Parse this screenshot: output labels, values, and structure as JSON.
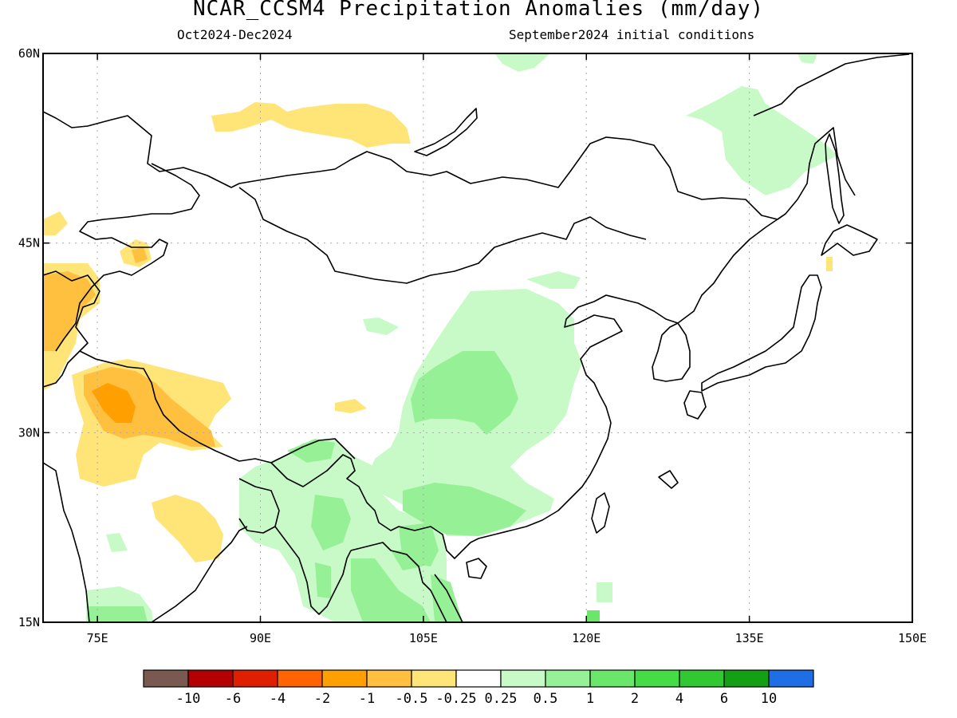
{
  "title": "NCAR_CCSM4 Precipitation Anomalies (mm/day)",
  "subtitle_left": "Oct2024-Dec2024",
  "subtitle_right": "September2024 initial conditions",
  "map": {
    "lon_min": 70,
    "lon_max": 150,
    "lat_min": 15,
    "lat_max": 60,
    "lat_ticks": [
      {
        "value": 60,
        "label": "60N"
      },
      {
        "value": 45,
        "label": "45N"
      },
      {
        "value": 30,
        "label": "30N"
      },
      {
        "value": 15,
        "label": "15N"
      }
    ],
    "lon_ticks": [
      {
        "value": 75,
        "label": "75E"
      },
      {
        "value": 90,
        "label": "90E"
      },
      {
        "value": 105,
        "label": "105E"
      },
      {
        "value": 120,
        "label": "120E"
      },
      {
        "value": 135,
        "label": "135E"
      },
      {
        "value": 150,
        "label": "150E"
      }
    ],
    "grid": true,
    "projection": "lat-lon"
  },
  "colorbar": {
    "colors": [
      "#7a5a50",
      "#b40000",
      "#e01e00",
      "#ff6400",
      "#ffa000",
      "#ffc040",
      "#ffe478",
      "#ffffff",
      "#c8fac8",
      "#96f096",
      "#6ae66a",
      "#46dc46",
      "#32c832",
      "#14a014",
      "#1e6ee6"
    ],
    "labels": [
      "-10",
      "-6",
      "-4",
      "-2",
      "-1",
      "-0.5",
      "-0.25",
      "0.25",
      "0.5",
      "1",
      "2",
      "4",
      "6",
      "10"
    ]
  },
  "anomaly_regions": [
    {
      "category": "light-green",
      "color": "#c8fac8"
    },
    {
      "category": "green",
      "color": "#96f096"
    },
    {
      "category": "light-yellow",
      "color": "#ffe478"
    },
    {
      "category": "yellow-orange",
      "color": "#ffc040"
    },
    {
      "category": "orange",
      "color": "#ffa000"
    }
  ]
}
